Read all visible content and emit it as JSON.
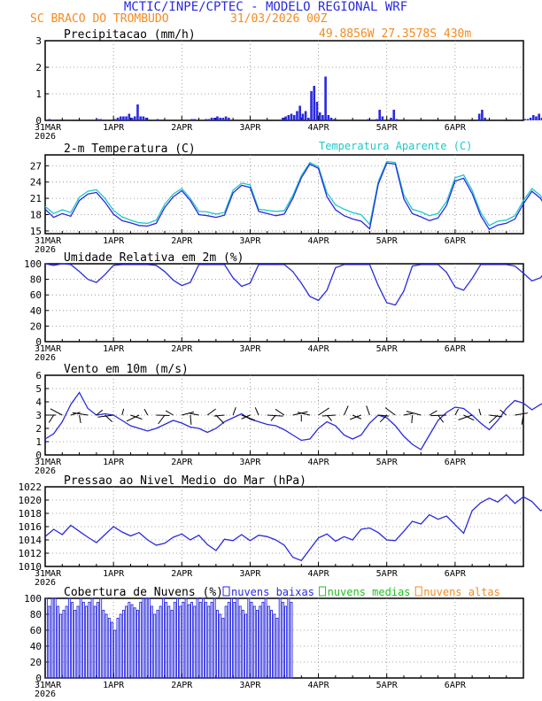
{
  "header": {
    "title": "MCTIC/INPE/CPTEC - MODELO REGIONAL WRF",
    "location": "SC BRACO DO TROMBUDO",
    "run": "31/03/2026 00Z",
    "coords": "49.8856W 27.3578S 430m"
  },
  "colors": {
    "title": "#2a2ae0",
    "header_orange": "#f58a1f",
    "blue": "#2a2ae0",
    "cyan": "#1fc8c8",
    "green": "#22c022",
    "orange": "#f58a1f",
    "black": "#000000"
  },
  "time_axis": {
    "days": [
      "31MAR",
      "1APR",
      "2APR",
      "3APR",
      "4APR",
      "5APR",
      "6APR"
    ],
    "first_year": "2026",
    "hours": 168,
    "step_hours": 3
  },
  "chart_data": [
    {
      "type": "bar",
      "name": "precip",
      "title": "Precipitacao (mm/h)",
      "ylim": [
        0,
        3
      ],
      "yticks": [
        0,
        1,
        2,
        3
      ],
      "x_hours": "hourly 0..167",
      "series": [
        {
          "name": "precipitation",
          "values": [
            0,
            0.05,
            0,
            0,
            0,
            0,
            0,
            0,
            0,
            0,
            0,
            0,
            0,
            0,
            0,
            0,
            0,
            0,
            0.05,
            0.05,
            0,
            0,
            0,
            0,
            0.05,
            0.1,
            0.15,
            0.15,
            0.15,
            0.25,
            0.1,
            0.15,
            0.6,
            0.15,
            0.15,
            0.1,
            0,
            0,
            0,
            0.05,
            0,
            0,
            0,
            0,
            0,
            0,
            0,
            0,
            0,
            0,
            0,
            0.05,
            0.05,
            0,
            0,
            0,
            0.05,
            0.05,
            0.1,
            0.1,
            0.15,
            0.1,
            0.1,
            0.15,
            0.1,
            0,
            0,
            0,
            0,
            0,
            0,
            0,
            0,
            0,
            0,
            0,
            0,
            0,
            0,
            0,
            0,
            0,
            0,
            0.1,
            0.15,
            0.2,
            0.25,
            0.2,
            0.35,
            0.55,
            0.25,
            0.35,
            0.1,
            1.1,
            1.3,
            0.7,
            0.3,
            0.2,
            1.65,
            0.2,
            0.1,
            0.05,
            0,
            0,
            0,
            0,
            0,
            0,
            0,
            0,
            0,
            0,
            0,
            0.05,
            0,
            0,
            0.05,
            0.4,
            0.15,
            0,
            0,
            0.1,
            0.4,
            0.05,
            0,
            0,
            0,
            0,
            0,
            0,
            0,
            0,
            0,
            0,
            0,
            0,
            0,
            0,
            0,
            0,
            0,
            0,
            0,
            0,
            0,
            0,
            0,
            0,
            0,
            0,
            0,
            0,
            0.25,
            0.4,
            0.1,
            0,
            0,
            0,
            0,
            0,
            0,
            0,
            0,
            0,
            0,
            0,
            0,
            0,
            0.05,
            0.05,
            0.1,
            0.2,
            0.15,
            0.25,
            0.1,
            0.2,
            0.15,
            0.25
          ]
        }
      ]
    },
    {
      "type": "line",
      "name": "temperature",
      "title": "2-m Temperatura (C)",
      "legend": "Temperatura Aparente (C)",
      "ylim": [
        14.5,
        29
      ],
      "yticks": [
        15,
        18,
        21,
        24,
        27
      ],
      "x_hours": "every 3h, 0..168",
      "series": [
        {
          "name": "Temperatura Aparente (C)",
          "color": "cyan",
          "values": [
            19.5,
            18.2,
            18.9,
            18.4,
            21.2,
            22.3,
            22.6,
            21.0,
            18.8,
            17.6,
            17.0,
            16.5,
            16.4,
            17.0,
            19.9,
            21.8,
            22.8,
            21.0,
            18.6,
            18.5,
            18.1,
            18.4,
            22.5,
            23.8,
            23.5,
            19.0,
            18.8,
            18.6,
            18.7,
            21.5,
            25.2,
            27.6,
            26.8,
            22.0,
            19.8,
            19.0,
            18.4,
            18.0,
            16.2,
            24.1,
            27.8,
            27.6,
            21.6,
            19.0,
            18.5,
            17.8,
            18.2,
            20.4,
            24.8,
            25.3,
            22.5,
            18.4,
            16.0,
            16.8,
            17.0,
            17.8,
            20.6,
            22.8,
            21.5,
            19.2
          ]
        },
        {
          "name": "2-m Temperatura (C)",
          "color": "blue",
          "values": [
            19.0,
            17.5,
            18.2,
            17.7,
            20.6,
            21.8,
            22.1,
            20.3,
            18.1,
            16.9,
            16.5,
            16.0,
            15.9,
            16.4,
            19.3,
            21.3,
            22.4,
            20.6,
            18.0,
            17.8,
            17.5,
            17.9,
            22.0,
            23.4,
            23.0,
            18.6,
            18.2,
            17.8,
            18.1,
            21.0,
            24.8,
            27.3,
            26.5,
            21.3,
            18.9,
            17.8,
            17.2,
            16.8,
            15.4,
            23.6,
            27.5,
            27.3,
            20.9,
            18.2,
            17.6,
            16.9,
            17.4,
            19.7,
            24.2,
            24.7,
            21.9,
            17.8,
            15.3,
            16.1,
            16.4,
            17.2,
            20.0,
            22.3,
            21.0,
            18.6
          ]
        }
      ]
    },
    {
      "type": "line",
      "name": "humidity",
      "title": "Umidade Relativa em 2m (%)",
      "ylim": [
        0,
        100
      ],
      "yticks": [
        0,
        20,
        40,
        60,
        80,
        100
      ],
      "x_hours": "every 3h, 0..168",
      "series": [
        {
          "name": "Umidade Relativa",
          "color": "blue",
          "values": [
            100,
            98,
            100,
            99,
            90,
            80,
            76,
            86,
            98,
            99,
            99,
            99,
            99,
            98,
            90,
            79,
            72,
            76,
            99,
            99,
            99,
            99,
            82,
            71,
            75,
            99,
            99,
            99,
            99,
            90,
            75,
            58,
            53,
            66,
            95,
            99,
            99,
            99,
            99,
            72,
            50,
            47,
            65,
            97,
            99,
            99,
            99,
            89,
            70,
            66,
            81,
            99,
            99,
            99,
            99,
            97,
            88,
            78,
            82,
            95
          ]
        }
      ]
    },
    {
      "type": "line",
      "name": "wind",
      "title": "Vento em 10m (m/s)",
      "ylim": [
        0,
        6
      ],
      "yticks": [
        0,
        1,
        2,
        3,
        4,
        5,
        6
      ],
      "x_hours": "every 3h, 0..168",
      "series": [
        {
          "name": "Vento em 10m",
          "color": "blue",
          "values": [
            1.2,
            1.6,
            2.5,
            3.8,
            4.7,
            3.5,
            3.0,
            3.1,
            3.0,
            2.6,
            2.2,
            2.0,
            1.8,
            2.0,
            2.3,
            2.6,
            2.4,
            2.1,
            2.0,
            1.7,
            2.0,
            2.5,
            2.8,
            3.1,
            2.7,
            2.5,
            2.3,
            2.2,
            1.9,
            1.5,
            1.1,
            1.2,
            2.0,
            2.5,
            2.2,
            1.5,
            1.2,
            1.5,
            2.4,
            3.0,
            2.8,
            2.2,
            1.4,
            0.8,
            0.4,
            1.5,
            2.6,
            3.2,
            3.6,
            3.5,
            3.0,
            2.4,
            1.9,
            2.6,
            3.5,
            4.1,
            3.9,
            3.4,
            3.8,
            4.1
          ]
        }
      ]
    },
    {
      "type": "line",
      "name": "pressure",
      "title": "Pressao ao Nivel Medio do Mar (hPa)",
      "ylim": [
        1010,
        1022
      ],
      "yticks": [
        1010,
        1012,
        1014,
        1016,
        1018,
        1020,
        1022
      ],
      "x_hours": "every 3h, 0..168",
      "series": [
        {
          "name": "Pressao",
          "color": "blue",
          "values": [
            1014.5,
            1015.6,
            1014.8,
            1016.2,
            1015.3,
            1014.4,
            1013.6,
            1014.8,
            1016.0,
            1015.2,
            1014.6,
            1015.1,
            1014.0,
            1013.2,
            1013.5,
            1014.4,
            1014.9,
            1014.0,
            1014.7,
            1013.3,
            1012.4,
            1014.1,
            1013.9,
            1014.8,
            1013.9,
            1014.7,
            1014.5,
            1014.0,
            1013.2,
            1011.4,
            1010.9,
            1012.6,
            1014.3,
            1014.9,
            1013.8,
            1014.5,
            1014.0,
            1015.6,
            1015.8,
            1015.1,
            1014.0,
            1013.9,
            1015.3,
            1016.8,
            1016.4,
            1017.8,
            1017.1,
            1017.6,
            1016.3,
            1015.0,
            1018.4,
            1019.6,
            1020.3,
            1019.7,
            1020.8,
            1019.5,
            1020.5,
            1019.8,
            1018.4,
            1019.0
          ]
        }
      ]
    },
    {
      "type": "bar",
      "name": "clouds",
      "title": "Cobertura de Nuvens (%)",
      "legend": [
        "nuvens baixas",
        "nuvens medias",
        "nuvens altas"
      ],
      "ylim": [
        0,
        100
      ],
      "yticks": [
        0,
        20,
        40,
        60,
        80,
        100
      ],
      "x_hours": "hourly 0..167",
      "series": [
        {
          "name": "nuvens baixas",
          "color": "blue",
          "values": [
            100,
            90,
            100,
            100,
            90,
            80,
            85,
            90,
            100,
            95,
            85,
            90,
            100,
            95,
            90,
            95,
            100,
            90,
            95,
            100,
            85,
            80,
            75,
            70,
            60,
            75,
            80,
            85,
            90,
            95,
            92,
            88,
            85,
            95,
            100,
            100,
            100,
            90,
            80,
            85,
            90,
            100,
            95,
            90,
            85,
            95,
            100,
            90,
            95,
            100,
            92,
            95,
            90,
            100,
            95,
            100,
            95,
            90,
            95,
            100,
            85,
            80,
            75,
            90,
            95,
            100,
            95,
            100,
            90,
            85,
            80,
            100,
            95,
            90,
            85,
            90,
            95,
            100,
            90,
            85,
            80,
            75,
            100,
            95,
            90,
            100,
            95,
            0,
            0,
            0,
            0,
            0,
            0,
            0,
            0,
            0,
            0,
            0,
            0,
            0,
            0,
            0,
            0,
            0,
            0,
            0,
            0,
            0,
            0,
            0,
            0,
            0,
            0,
            0,
            0,
            0,
            0,
            0,
            0,
            0,
            0,
            0,
            0,
            0,
            0,
            0,
            0,
            0,
            0,
            0,
            0,
            0,
            0,
            0,
            0,
            0,
            0,
            0,
            0,
            0,
            0,
            0,
            0,
            0,
            0,
            0,
            0,
            0,
            0,
            0,
            0,
            0,
            0,
            0,
            0,
            0,
            0
          ]
        },
        {
          "name": "nuvens medias",
          "color": "green",
          "values": [
            0,
            0,
            0,
            0,
            0,
            0,
            0,
            0,
            0,
            0,
            0,
            0,
            0,
            0,
            0,
            0,
            0,
            0,
            0,
            0,
            0,
            0,
            0,
            0,
            0,
            0,
            0,
            0,
            0,
            0,
            0,
            0,
            0,
            0,
            0,
            0,
            0,
            0,
            0,
            0,
            0,
            0,
            0,
            0,
            0,
            0,
            0,
            0,
            0,
            0,
            0,
            0,
            0,
            0,
            0,
            0,
            0,
            0,
            0,
            0,
            0,
            0,
            0,
            0,
            0,
            0,
            0,
            0,
            0,
            0,
            0,
            0,
            0,
            0,
            0,
            0,
            0,
            0,
            0,
            0,
            0,
            0,
            0,
            0,
            0,
            0,
            0,
            0,
            0,
            0,
            0,
            0,
            0,
            0,
            0,
            0,
            0,
            0,
            0,
            0,
            0,
            0,
            0,
            0,
            0,
            0,
            0,
            0,
            0,
            0,
            0,
            0,
            0,
            0,
            0,
            0,
            0,
            0,
            0,
            0,
            0,
            0,
            0,
            0,
            0,
            0,
            0,
            0,
            0,
            0,
            0,
            0,
            0,
            0,
            0,
            0,
            0,
            0,
            0,
            0,
            0,
            0,
            0,
            0,
            0,
            0,
            0,
            0,
            0,
            0,
            0,
            0,
            0,
            0,
            0,
            0,
            0,
            0,
            0,
            0,
            0,
            0,
            0,
            0,
            0,
            0,
            0,
            0
          ]
        },
        {
          "name": "nuvens altas",
          "color": "orange",
          "values": [
            0,
            0,
            0,
            0,
            0,
            0,
            0,
            0,
            0,
            0,
            0,
            0,
            0,
            0,
            0,
            0,
            0,
            0,
            0,
            0,
            0,
            0,
            0,
            0,
            0,
            0,
            0,
            0,
            0,
            0,
            0,
            0,
            0,
            0,
            0,
            0,
            0,
            0,
            0,
            0,
            0,
            0,
            0,
            0,
            0,
            0,
            0,
            0,
            0,
            0,
            0,
            0,
            0,
            0,
            0,
            0,
            0,
            0,
            0,
            0,
            0,
            0,
            0,
            0,
            0,
            0,
            0,
            0,
            0,
            0,
            0,
            0,
            0,
            0,
            0,
            0,
            0,
            0,
            0,
            0,
            0,
            0,
            0,
            0,
            0,
            0,
            0,
            0,
            0,
            0,
            0,
            0,
            0,
            0,
            0,
            0,
            0,
            0,
            0,
            0,
            0,
            0,
            0,
            0,
            0,
            0,
            0,
            0,
            0,
            0,
            0,
            0,
            0,
            0,
            0,
            0,
            0,
            0,
            0,
            0,
            0,
            0,
            0,
            0,
            0,
            0,
            0,
            0,
            0,
            0,
            0,
            0,
            0,
            0,
            0,
            0,
            0,
            0,
            0,
            0,
            0,
            0,
            0,
            0,
            0,
            0,
            0,
            0,
            0,
            0,
            0,
            0,
            0,
            0,
            0,
            0,
            0,
            0,
            0,
            0,
            0,
            0,
            0,
            0,
            0,
            0,
            0,
            0
          ]
        }
      ]
    }
  ]
}
